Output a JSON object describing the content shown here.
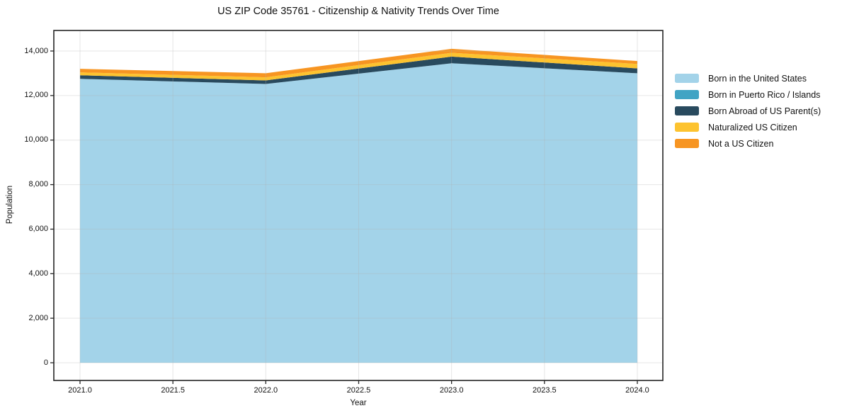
{
  "chart_data": {
    "type": "area",
    "stacked": true,
    "title": "US ZIP Code 35761 - Citizenship & Nativity Trends Over Time",
    "xlabel": "Year",
    "ylabel": "Population",
    "x": [
      2021,
      2022,
      2023,
      2024
    ],
    "series": [
      {
        "name": "Born in the United States",
        "color": "#a3d3e9",
        "values": [
          12750,
          12520,
          13450,
          13000
        ]
      },
      {
        "name": "Born in Puerto Rico / Islands",
        "color": "#41a4c4",
        "values": [
          0,
          0,
          0,
          0
        ]
      },
      {
        "name": "Born Abroad of US Parent(s)",
        "color": "#294a5e",
        "values": [
          160,
          160,
          300,
          220
        ]
      },
      {
        "name": "Naturalized US Citizen",
        "color": "#fdc32f",
        "values": [
          130,
          140,
          170,
          200
        ]
      },
      {
        "name": "Not a US Citizen",
        "color": "#f79522",
        "values": [
          160,
          180,
          180,
          130
        ]
      }
    ],
    "stacked_totals": [
      13200,
      13000,
      14100,
      13550
    ],
    "x_ticks": {
      "values": [
        2021.0,
        2021.5,
        2022.0,
        2022.5,
        2023.0,
        2023.5,
        2024.0
      ],
      "labels": [
        "2021.0",
        "2021.5",
        "2022.0",
        "2022.5",
        "2023.0",
        "2023.5",
        "2024.0"
      ]
    },
    "y_ticks": {
      "values": [
        0,
        2000,
        4000,
        6000,
        8000,
        10000,
        12000,
        14000
      ],
      "labels": [
        "0",
        "2,000",
        "4,000",
        "6,000",
        "8,000",
        "10,000",
        "12,000",
        "14,000"
      ]
    },
    "xlim": [
      2020.87,
      2024.14
    ],
    "ylim": [
      -770,
      14870
    ],
    "grid": true,
    "legend_position": "right-outside",
    "colors": {
      "grid": "#b0b0b0",
      "spine": "#262626",
      "background": "#ffffff"
    }
  }
}
